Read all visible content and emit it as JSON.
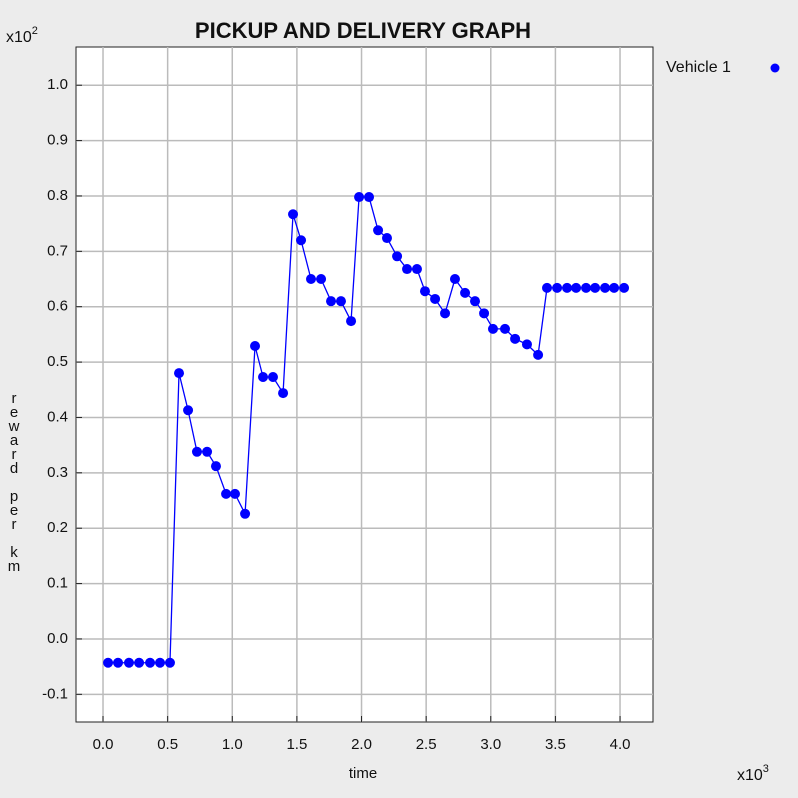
{
  "chart_data": {
    "type": "line",
    "title": "PICKUP AND DELIVERY GRAPH",
    "xlabel": "time",
    "ylabel": "reward per km",
    "x_multiplier": {
      "base": "x10",
      "exponent": "3"
    },
    "y_multiplier": {
      "base": "x10",
      "exponent": "2"
    },
    "xlim": [
      -0.209,
      4.255
    ],
    "ylim": [
      -0.15,
      1.069
    ],
    "xticks": [
      {
        "value": 0,
        "label": "0.0"
      },
      {
        "value": 0.5,
        "label": "0.5"
      },
      {
        "value": 1,
        "label": "1.0"
      },
      {
        "value": 1.5,
        "label": "1.5"
      },
      {
        "value": 2,
        "label": "2.0"
      },
      {
        "value": 2.5,
        "label": "2.5"
      },
      {
        "value": 3,
        "label": "3.0"
      },
      {
        "value": 3.5,
        "label": "3.5"
      },
      {
        "value": 4,
        "label": "4.0"
      }
    ],
    "yticks": [
      {
        "value": -0.1,
        "label": "-0.1"
      },
      {
        "value": 0,
        "label": "0.0"
      },
      {
        "value": 0.1,
        "label": "0.1"
      },
      {
        "value": 0.2,
        "label": "0.2"
      },
      {
        "value": 0.3,
        "label": "0.3"
      },
      {
        "value": 0.4,
        "label": "0.4"
      },
      {
        "value": 0.5,
        "label": "0.5"
      },
      {
        "value": 0.6,
        "label": "0.6"
      },
      {
        "value": 0.7,
        "label": "0.7"
      },
      {
        "value": 0.8,
        "label": "0.8"
      },
      {
        "value": 0.9,
        "label": "0.9"
      },
      {
        "value": 1,
        "label": "1.0"
      }
    ],
    "grid": true,
    "legend": "right",
    "series": [
      {
        "name": "Vehicle 1",
        "color": "#0000ff",
        "x": [
          0.039,
          0.116,
          0.201,
          0.279,
          0.364,
          0.441,
          0.518,
          0.588,
          0.658,
          0.727,
          0.805,
          0.874,
          0.952,
          1.021,
          1.099,
          1.176,
          1.238,
          1.315,
          1.393,
          1.47,
          1.532,
          1.609,
          1.687,
          1.764,
          1.841,
          1.919,
          1.981,
          2.058,
          2.128,
          2.197,
          2.275,
          2.352,
          2.429,
          2.491,
          2.569,
          2.646,
          2.723,
          2.801,
          2.878,
          2.948,
          3.017,
          3.11,
          3.188,
          3.28,
          3.366,
          3.435,
          3.513,
          3.59,
          3.66,
          3.737,
          3.807,
          3.884,
          3.954,
          4.031
        ],
        "values": [
          -0.043,
          -0.043,
          -0.043,
          -0.043,
          -0.043,
          -0.043,
          -0.043,
          0.48,
          0.413,
          0.338,
          0.338,
          0.312,
          0.262,
          0.262,
          0.226,
          0.529,
          0.473,
          0.473,
          0.444,
          0.767,
          0.72,
          0.65,
          0.65,
          0.61,
          0.61,
          0.574,
          0.798,
          0.798,
          0.738,
          0.724,
          0.691,
          0.668,
          0.668,
          0.628,
          0.614,
          0.588,
          0.65,
          0.625,
          0.61,
          0.588,
          0.56,
          0.56,
          0.542,
          0.532,
          0.513,
          0.634,
          0.634,
          0.634,
          0.634,
          0.634,
          0.634,
          0.634,
          0.634,
          0.634
        ]
      }
    ]
  }
}
